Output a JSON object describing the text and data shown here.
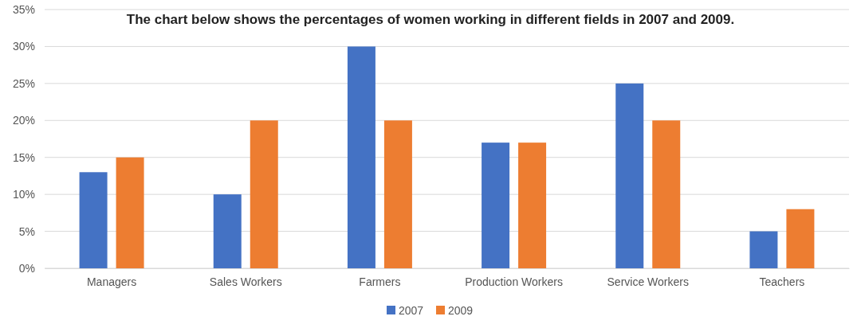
{
  "chart_data": {
    "type": "bar",
    "title": "The chart below shows the percentages of women working in different fields in 2007 and 2009.",
    "categories": [
      "Managers",
      "Sales Workers",
      "Farmers",
      "Production Workers",
      "Service Workers",
      "Teachers"
    ],
    "series": [
      {
        "name": "2007",
        "color": "#4472c4",
        "values": [
          13,
          10,
          30,
          17,
          25,
          5
        ]
      },
      {
        "name": "2009",
        "color": "#ed7d31",
        "values": [
          15,
          20,
          20,
          17,
          20,
          8
        ]
      }
    ],
    "ylim": [
      0,
      35
    ],
    "yticks": [
      {
        "value": 0,
        "label": "0%"
      },
      {
        "value": 5,
        "label": "5%"
      },
      {
        "value": 10,
        "label": "10%"
      },
      {
        "value": 15,
        "label": "15%"
      },
      {
        "value": 20,
        "label": "20%"
      },
      {
        "value": 25,
        "label": "25%"
      },
      {
        "value": 30,
        "label": "30%"
      },
      {
        "value": 35,
        "label": "35%"
      }
    ],
    "grid": "y",
    "legend": "bottom"
  }
}
